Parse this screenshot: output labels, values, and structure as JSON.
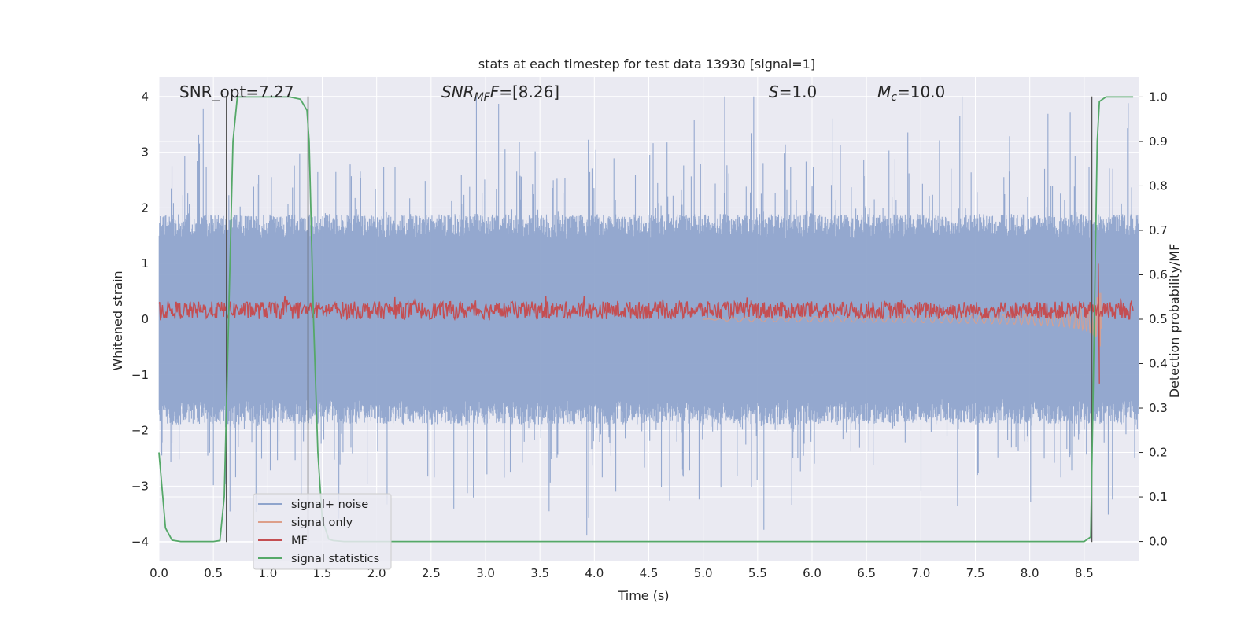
{
  "chart_data": {
    "type": "line",
    "title": "stats at each timestep for test data 13930 [signal=1]",
    "xlabel": "Time (s)",
    "ylabel": "Whitened strain",
    "ylabel_right": "Detection probability/MF",
    "xlim": [
      0.0,
      9.0
    ],
    "ylim": [
      -4.35,
      4.35
    ],
    "ylim_right": [
      -0.045,
      1.045
    ],
    "x_ticks": [
      "0.0",
      "0.5",
      "1.0",
      "1.5",
      "2.0",
      "2.5",
      "3.0",
      "3.5",
      "4.0",
      "4.5",
      "5.0",
      "5.5",
      "6.0",
      "6.5",
      "7.0",
      "7.5",
      "8.0",
      "8.5"
    ],
    "y_ticks": [
      "4",
      "3",
      "2",
      "1",
      "0",
      "−1",
      "−2",
      "−3",
      "−4"
    ],
    "y_right_ticks": [
      "1.0",
      "0.9",
      "0.8",
      "0.7",
      "0.6",
      "0.5",
      "0.4",
      "0.3",
      "0.2",
      "0.1",
      "0.0"
    ],
    "grid": true,
    "annotations": {
      "snr_opt": "SNR_opt=7.27",
      "snr_mf_base": "SNR",
      "snr_mf_sub": "MF",
      "snr_mf_rest": "=[8.26]",
      "s_italic": "S",
      "s_rest": "=1.0",
      "mc_base": "M",
      "mc_sub": "c",
      "mc_rest": "=10.0"
    },
    "vertical_markers": [
      0.62,
      1.37,
      8.57
    ],
    "legend_position": "lower-left",
    "series": [
      {
        "name": "signal+ noise",
        "axis": "left",
        "color": "#8fa4cc",
        "description": "dense whitened strain noise, roughly within ±2 with spikes to about ±4",
        "envelope": {
          "upper_typical": 1.8,
          "lower_typical": -1.8,
          "peak_max": 4.0,
          "peak_min": -4.0
        }
      },
      {
        "name": "signal only",
        "axis": "left",
        "color": "#dd9f8a",
        "description": "chirp growing toward merger near t=8.6 s",
        "chirp": {
          "start": 5.0,
          "end": 8.66,
          "peak_amplitude": 0.72
        }
      },
      {
        "name": "MF",
        "axis": "right",
        "color": "#c44e52",
        "description": "matched filter output, fluctuating about 0.52 with a peak near t=8.63",
        "baseline": 0.52,
        "fluctuation": 0.02,
        "peak": {
          "x": 8.63,
          "max": 0.625,
          "min": 0.355
        }
      },
      {
        "name": "signal statistics",
        "axis": "right",
        "color": "#55a868",
        "x": [
          0.0,
          0.06,
          0.12,
          0.2,
          0.3,
          0.4,
          0.5,
          0.56,
          0.6,
          0.64,
          0.68,
          0.72,
          0.8,
          0.9,
          1.0,
          1.1,
          1.2,
          1.3,
          1.36,
          1.38,
          1.42,
          1.46,
          1.5,
          1.56,
          1.6,
          1.7,
          2.0,
          3.0,
          4.0,
          5.0,
          6.0,
          7.0,
          8.0,
          8.5,
          8.56,
          8.58,
          8.62,
          8.64,
          8.7,
          8.8,
          8.95
        ],
        "y": [
          0.2,
          0.03,
          0.003,
          0.0,
          0.0,
          0.0,
          0.0,
          0.002,
          0.1,
          0.5,
          0.9,
          1.0,
          1.0,
          1.0,
          1.0,
          1.0,
          1.0,
          0.995,
          0.97,
          0.9,
          0.5,
          0.2,
          0.05,
          0.005,
          0.002,
          0.0,
          0.0,
          0.0,
          0.0,
          0.0,
          0.0,
          0.0,
          0.0,
          0.0,
          0.01,
          0.3,
          0.9,
          0.99,
          1.0,
          1.0,
          1.0
        ]
      }
    ]
  }
}
